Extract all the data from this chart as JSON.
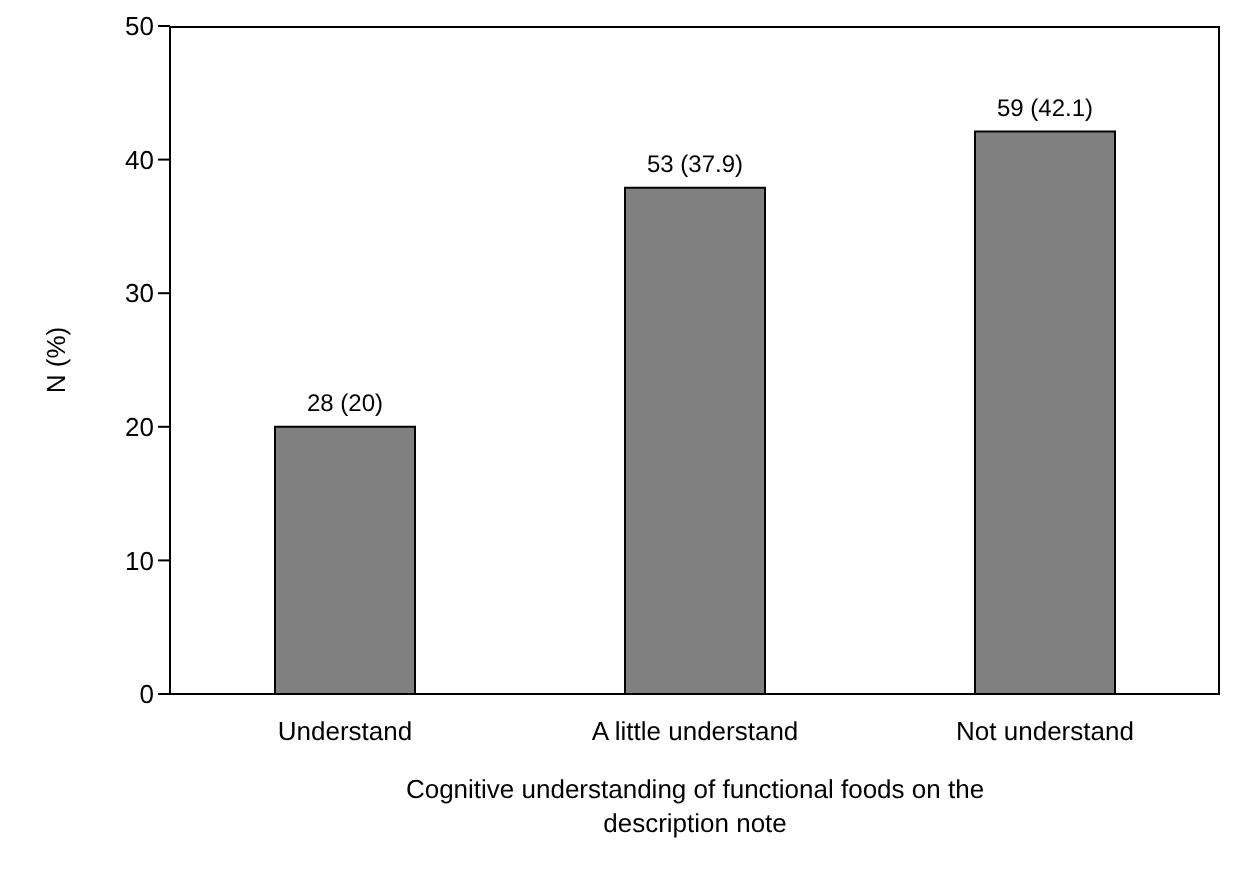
{
  "chart_data": {
    "type": "bar",
    "xlabel": "Cognitive understanding of functional foods on the description note",
    "ylabel": "N (%)",
    "categories": [
      "Understand",
      "A little understand",
      "Not understand"
    ],
    "values": [
      20,
      37.9,
      42.1
    ],
    "value_labels": [
      "28 (20)",
      "53 (37.9)",
      "59 (42.1)"
    ],
    "color": "#808080",
    "ylim": [
      0,
      50
    ],
    "yticks": [
      0,
      10,
      20,
      30,
      40,
      50
    ]
  }
}
